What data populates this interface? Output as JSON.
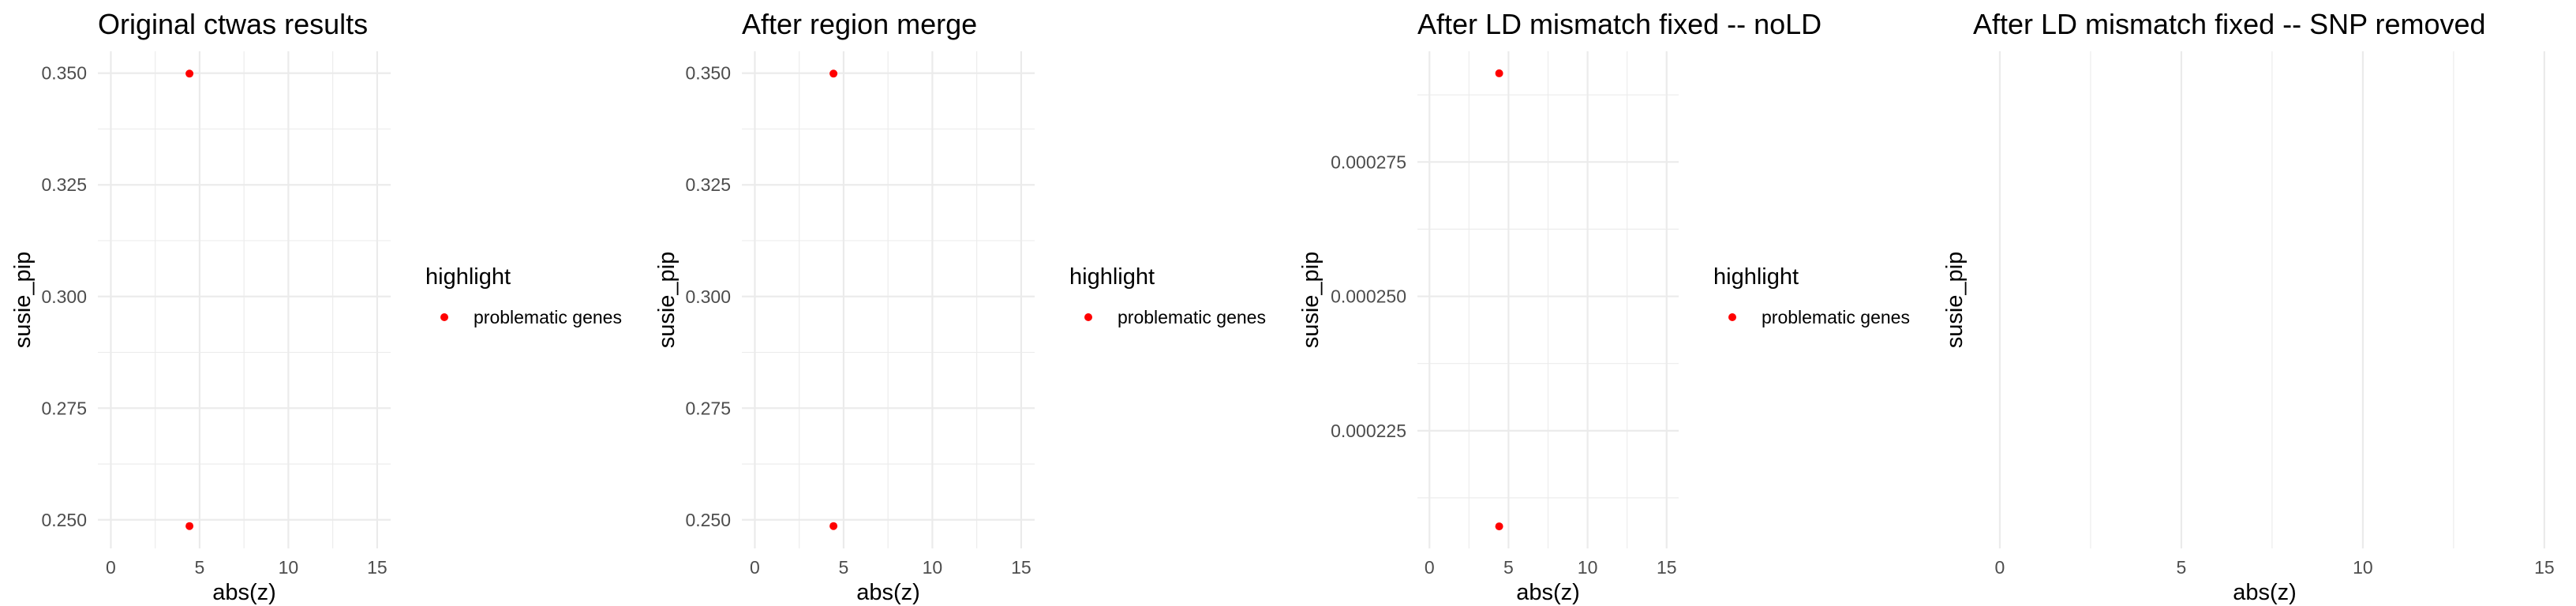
{
  "chart_data": [
    {
      "type": "scatter",
      "title": "Original ctwas results",
      "xlabel": "abs(z)",
      "ylabel": "susie_pip",
      "xlim": [
        -0.73,
        15.76
      ],
      "ylim": [
        0.2436,
        0.3549
      ],
      "xticks": [
        0,
        5,
        10,
        15
      ],
      "xtick_labels": [
        "0",
        "5",
        "10",
        "15"
      ],
      "yticks": [
        0.25,
        0.275,
        0.3,
        0.325,
        0.35
      ],
      "ytick_labels": [
        "0.250",
        "0.275",
        "0.300",
        "0.325",
        "0.350"
      ],
      "grid": true,
      "legend": {
        "title": "highlight",
        "entries": [
          {
            "label": "problematic genes",
            "color": "#ff0000"
          }
        ],
        "placement": "right"
      },
      "series": [
        {
          "name": "problematic genes",
          "color": "#ff0000",
          "x": [
            4.43,
            4.43
          ],
          "y": [
            0.3499,
            0.2486
          ]
        }
      ]
    },
    {
      "type": "scatter",
      "title": "After region merge",
      "xlabel": "abs(z)",
      "ylabel": "susie_pip",
      "xlim": [
        -0.73,
        15.76
      ],
      "ylim": [
        0.2436,
        0.3549
      ],
      "xticks": [
        0,
        5,
        10,
        15
      ],
      "xtick_labels": [
        "0",
        "5",
        "10",
        "15"
      ],
      "yticks": [
        0.25,
        0.275,
        0.3,
        0.325,
        0.35
      ],
      "ytick_labels": [
        "0.250",
        "0.275",
        "0.300",
        "0.325",
        "0.350"
      ],
      "grid": true,
      "legend": {
        "title": "highlight",
        "entries": [
          {
            "label": "problematic genes",
            "color": "#ff0000"
          }
        ],
        "placement": "right"
      },
      "series": [
        {
          "name": "problematic genes",
          "color": "#ff0000",
          "x": [
            4.43,
            4.43
          ],
          "y": [
            0.3499,
            0.2486
          ]
        }
      ]
    },
    {
      "type": "scatter",
      "title": "After LD mismatch fixed -- noLD",
      "xlabel": "abs(z)",
      "ylabel": "susie_pip",
      "xlim": [
        -0.76,
        15.76
      ],
      "ylim": [
        0.0002031,
        0.0002956
      ],
      "xticks": [
        0,
        5,
        10,
        15
      ],
      "xtick_labels": [
        "0",
        "5",
        "10",
        "15"
      ],
      "yticks": [
        0.000225,
        0.00025,
        0.000275
      ],
      "ytick_labels": [
        "0.000225",
        "0.000250",
        "0.000275"
      ],
      "grid": true,
      "legend": {
        "title": "highlight",
        "entries": [
          {
            "label": "problematic genes",
            "color": "#ff0000"
          }
        ],
        "placement": "right"
      },
      "series": [
        {
          "name": "problematic genes",
          "color": "#ff0000",
          "x": [
            4.41,
            4.41
          ],
          "y": [
            0.0002915,
            0.0002072
          ]
        }
      ]
    },
    {
      "type": "scatter",
      "title": "After LD mismatch fixed -- SNP removed",
      "xlabel": "abs(z)",
      "ylabel": "susie_pip",
      "xlim": [
        -0.76,
        15.35
      ],
      "ylim": null,
      "xticks": [
        0,
        5,
        10,
        15
      ],
      "xtick_labels": [
        "0",
        "5",
        "10",
        "15"
      ],
      "yticks": [],
      "ytick_labels": [],
      "grid": true,
      "legend": null,
      "series": []
    }
  ]
}
